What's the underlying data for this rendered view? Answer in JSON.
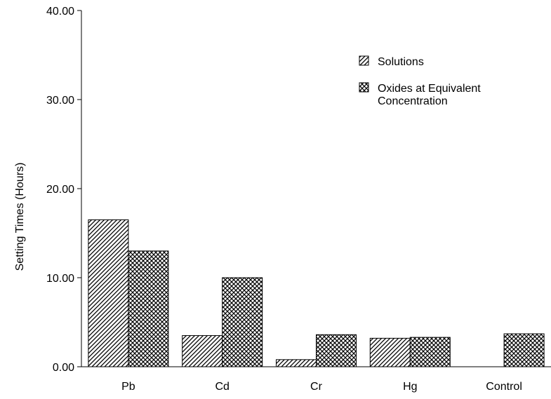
{
  "chart_data": {
    "type": "bar",
    "categories": [
      "Pb",
      "Cd",
      "Cr",
      "Hg",
      "Control"
    ],
    "series": [
      {
        "name": "Solutions",
        "values": [
          16.5,
          3.5,
          0.8,
          3.2,
          0.0
        ],
        "pattern": "diagonal-hatch"
      },
      {
        "name": "Oxides at Equivalent Concentration",
        "values": [
          13.0,
          10.0,
          3.6,
          3.3,
          3.7
        ],
        "pattern": "crosshatch"
      }
    ],
    "legend_lines": [
      [
        "Solutions"
      ],
      [
        "Oxides at Equivalent",
        "Concentration"
      ]
    ],
    "ylabel": "Setting Times (Hours)",
    "xlabel": "",
    "ylim": [
      0,
      40
    ],
    "yticks": [
      0,
      10,
      20,
      30,
      40
    ],
    "ytick_labels": [
      "0.00",
      "10.00",
      "20.00",
      "30.00",
      "40.00"
    ],
    "grid": false,
    "legend_position": "top-right"
  }
}
